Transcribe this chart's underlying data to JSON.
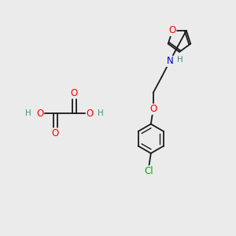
{
  "background_color": "#ebebeb",
  "bond_color": "#1a1a1a",
  "atom_colors": {
    "O": "#ff0000",
    "N": "#0000cd",
    "Cl": "#00aa00",
    "H": "#4a8a8a",
    "C": "#1a1a1a"
  },
  "font_size_atom": 8.5,
  "font_size_small": 7.5,
  "lw": 1.3
}
